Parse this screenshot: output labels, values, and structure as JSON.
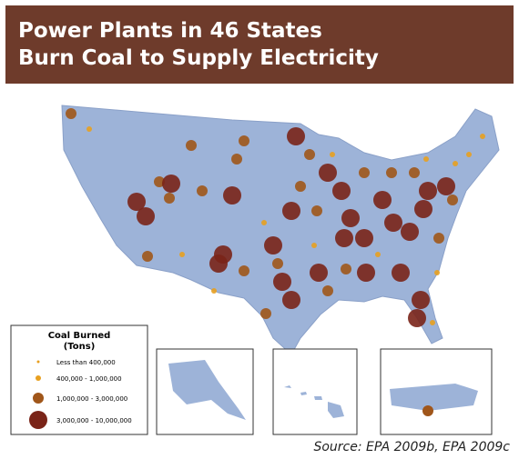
{
  "title": [
    "Power  Plants in 46 States",
    "Burn Coal to Supply Electricity"
  ],
  "legend": {
    "title": [
      "Coal Burned",
      "(Tons)"
    ],
    "items": [
      "Less than 400,000",
      "400,000 - 1,000,000",
      "1,000,000 - 3,000,000",
      "3,000,000 - 10,000,000"
    ]
  },
  "source": "Source: EPA 2009b, EPA 2009c"
}
